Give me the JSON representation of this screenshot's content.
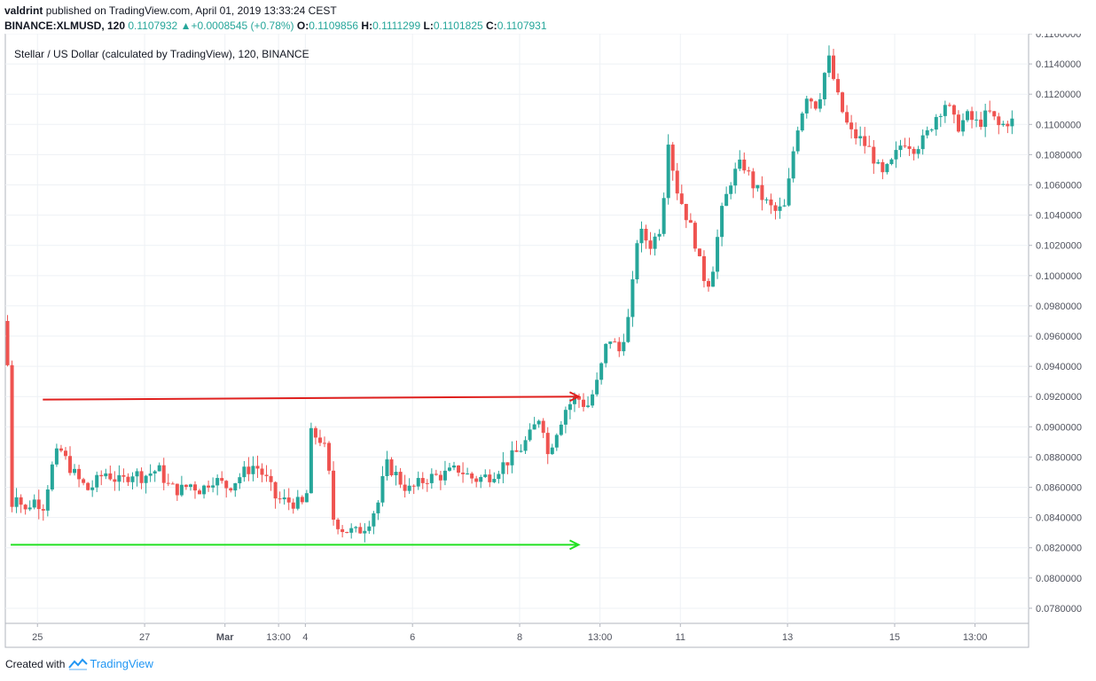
{
  "header": {
    "author": "valdrint",
    "published_text": "published on TradingView.com, April 01, 2019 13:33:24 CEST",
    "symbol": "BINANCE:XLMUSD, 120",
    "last_price": "0.1107932",
    "change": "+0.0008545 (+0.78%)",
    "open_label": "O:",
    "open": "0.1109856",
    "high_label": "H:",
    "high": "0.1111299",
    "low_label": "L:",
    "low": "0.1101825",
    "close_label": "C:",
    "close": "0.1107931"
  },
  "chart_title": "Stellar / US Dollar (calculated by TradingView), 120, BINANCE",
  "footer": {
    "created_with": "Created with",
    "brand": "TradingView"
  },
  "colors": {
    "up": "#26a69a",
    "down": "#ef5350",
    "resistance": "#e0201e",
    "support": "#22e022",
    "grid": "#eef1f5"
  },
  "chart_data": {
    "type": "candlestick",
    "timeframe": "120",
    "title": "Stellar / US Dollar (calculated by TradingView), 120, BINANCE",
    "ylim": [
      0.077,
      0.116
    ],
    "y_ticks": [
      "0.0780000",
      "0.0800000",
      "0.0820000",
      "0.0840000",
      "0.0860000",
      "0.0880000",
      "0.0900000",
      "0.0920000",
      "0.0940000",
      "0.0960000",
      "0.0980000",
      "0.1000000",
      "0.1020000",
      "0.1040000",
      "0.1060000",
      "0.1080000",
      "0.1100000",
      "0.1120000",
      "0.1140000",
      "0.1160000"
    ],
    "x_ticks": [
      {
        "label": "25",
        "at": 1.0
      },
      {
        "label": "27",
        "at": 3.0
      },
      {
        "label": "Mar",
        "at": 4.5
      },
      {
        "label": "13:00",
        "at": 5.5
      },
      {
        "label": "4",
        "at": 6.0
      },
      {
        "label": "6",
        "at": 8.0
      },
      {
        "label": "8",
        "at": 10.0
      },
      {
        "label": "13:00",
        "at": 11.5
      },
      {
        "label": "11",
        "at": 13.0
      },
      {
        "label": "13",
        "at": 15.0
      },
      {
        "label": "15",
        "at": 17.0
      },
      {
        "label": "13:00",
        "at": 18.5
      }
    ],
    "x_range": [
      0.4,
      19.5
    ],
    "price_path": [
      [
        0.4,
        0.097
      ],
      [
        0.48,
        0.095
      ],
      [
        0.52,
        0.084
      ],
      [
        0.62,
        0.086
      ],
      [
        0.8,
        0.0843
      ],
      [
        0.95,
        0.0852
      ],
      [
        1.15,
        0.0848
      ],
      [
        1.3,
        0.0872
      ],
      [
        1.45,
        0.0886
      ],
      [
        1.6,
        0.0876
      ],
      [
        1.8,
        0.0865
      ],
      [
        2.0,
        0.0858
      ],
      [
        2.3,
        0.087
      ],
      [
        2.6,
        0.0863
      ],
      [
        2.8,
        0.087
      ],
      [
        3.0,
        0.0867
      ],
      [
        3.3,
        0.0872
      ],
      [
        3.5,
        0.086
      ],
      [
        3.7,
        0.0858
      ],
      [
        3.9,
        0.0862
      ],
      [
        4.1,
        0.0858
      ],
      [
        4.3,
        0.0866
      ],
      [
        4.6,
        0.086
      ],
      [
        4.9,
        0.087
      ],
      [
        5.1,
        0.0875
      ],
      [
        5.3,
        0.0866
      ],
      [
        5.5,
        0.0852
      ],
      [
        5.8,
        0.085
      ],
      [
        6.05,
        0.0848
      ],
      [
        6.15,
        0.0895
      ],
      [
        6.3,
        0.0893
      ],
      [
        6.45,
        0.0882
      ],
      [
        6.55,
        0.084
      ],
      [
        6.75,
        0.0832
      ],
      [
        7.0,
        0.083
      ],
      [
        7.2,
        0.0836
      ],
      [
        7.4,
        0.085
      ],
      [
        7.55,
        0.0875
      ],
      [
        7.7,
        0.087
      ],
      [
        7.85,
        0.0862
      ],
      [
        8.0,
        0.0858
      ],
      [
        8.3,
        0.0866
      ],
      [
        8.6,
        0.0868
      ],
      [
        8.9,
        0.0872
      ],
      [
        9.2,
        0.0865
      ],
      [
        9.5,
        0.0868
      ],
      [
        9.7,
        0.0874
      ],
      [
        9.9,
        0.088
      ],
      [
        10.05,
        0.0885
      ],
      [
        10.25,
        0.0895
      ],
      [
        10.45,
        0.091
      ],
      [
        10.55,
        0.088
      ],
      [
        10.7,
        0.0895
      ],
      [
        10.9,
        0.0912
      ],
      [
        11.1,
        0.092
      ],
      [
        11.3,
        0.0913
      ],
      [
        11.5,
        0.093
      ],
      [
        11.7,
        0.096
      ],
      [
        11.9,
        0.095
      ],
      [
        12.1,
        0.0975
      ],
      [
        12.25,
        0.103
      ],
      [
        12.5,
        0.102
      ],
      [
        12.7,
        0.1035
      ],
      [
        12.8,
        0.1095
      ],
      [
        12.95,
        0.106
      ],
      [
        13.1,
        0.1045
      ],
      [
        13.3,
        0.1025
      ],
      [
        13.45,
        0.1
      ],
      [
        13.6,
        0.0995
      ],
      [
        13.8,
        0.104
      ],
      [
        14.0,
        0.1065
      ],
      [
        14.2,
        0.1075
      ],
      [
        14.4,
        0.106
      ],
      [
        14.6,
        0.105
      ],
      [
        14.8,
        0.1042
      ],
      [
        15.0,
        0.1045
      ],
      [
        15.2,
        0.1095
      ],
      [
        15.4,
        0.112
      ],
      [
        15.6,
        0.1112
      ],
      [
        15.8,
        0.1145
      ],
      [
        16.0,
        0.1115
      ],
      [
        16.2,
        0.1095
      ],
      [
        16.4,
        0.109
      ],
      [
        16.6,
        0.1082
      ],
      [
        16.8,
        0.1065
      ],
      [
        17.0,
        0.1075
      ],
      [
        17.2,
        0.109
      ],
      [
        17.4,
        0.1085
      ],
      [
        17.6,
        0.109
      ],
      [
        17.8,
        0.1105
      ],
      [
        18.0,
        0.1115
      ],
      [
        18.2,
        0.1098
      ],
      [
        18.4,
        0.1105
      ],
      [
        18.6,
        0.11
      ],
      [
        18.8,
        0.1108
      ],
      [
        19.0,
        0.1098
      ],
      [
        19.15,
        0.1102
      ]
    ],
    "annotations": [
      {
        "type": "arrow",
        "name": "resistance-arrow",
        "from": [
          1.1,
          0.0918
        ],
        "to": [
          11.1,
          0.092
        ],
        "color": "#e0201e"
      },
      {
        "type": "arrow",
        "name": "support-arrow",
        "from": [
          0.5,
          0.0822
        ],
        "to": [
          11.1,
          0.0822
        ],
        "color": "#22e022"
      }
    ]
  }
}
